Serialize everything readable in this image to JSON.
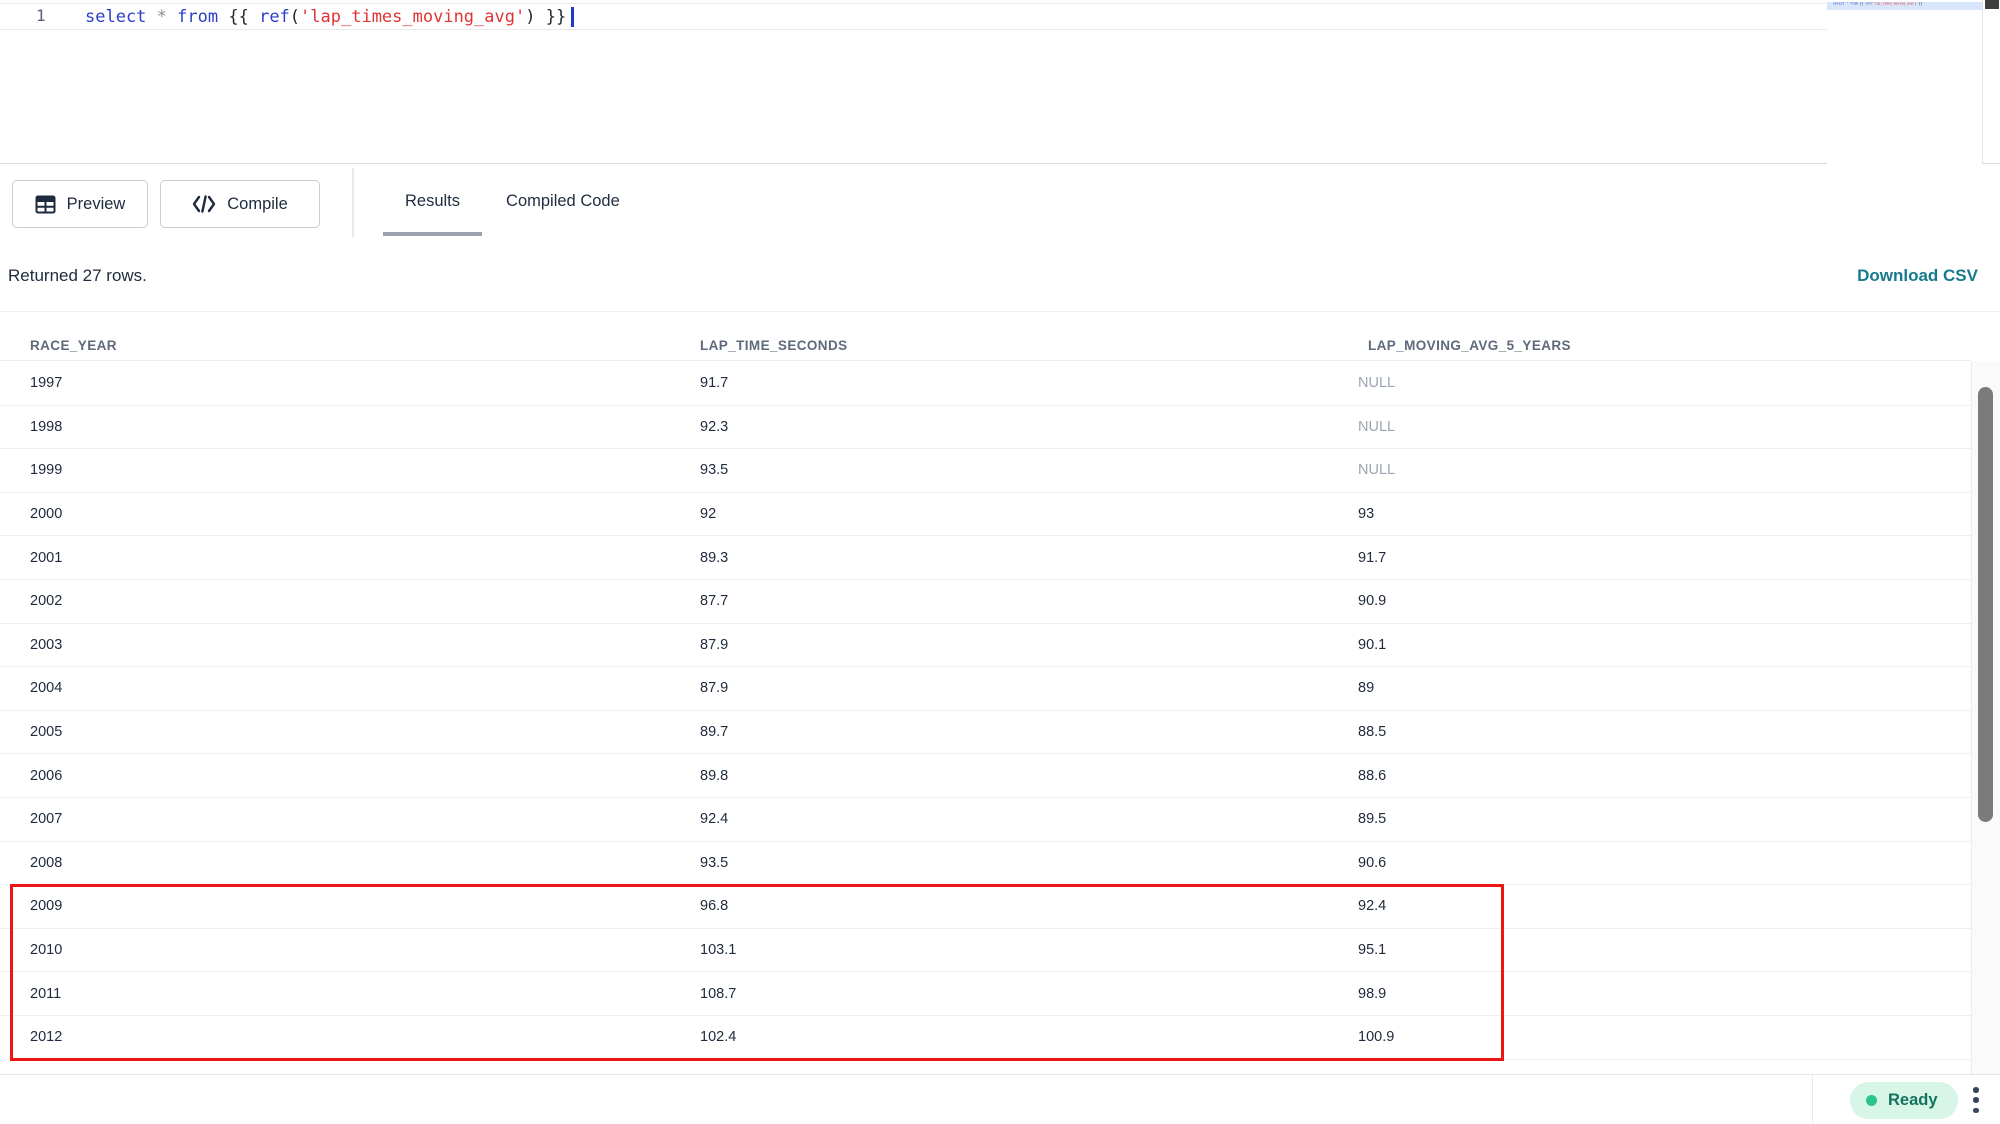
{
  "editor": {
    "line_number": "1",
    "code_text": "select * from {{ ref('lap_times_moving_avg') }}",
    "tokens": [
      {
        "text": "select",
        "type": "keyword"
      },
      {
        "text": " ",
        "type": "plain"
      },
      {
        "text": "*",
        "type": "operator"
      },
      {
        "text": " ",
        "type": "plain"
      },
      {
        "text": "from",
        "type": "keyword"
      },
      {
        "text": " {{ ",
        "type": "plain"
      },
      {
        "text": "ref",
        "type": "keyword"
      },
      {
        "text": "(",
        "type": "plain"
      },
      {
        "text": "'lap_times_moving_avg'",
        "type": "string"
      },
      {
        "text": ")",
        "type": "plain"
      },
      {
        "text": " }}",
        "type": "plain"
      }
    ],
    "token_colors": {
      "keyword": "#2b3ec9",
      "operator": "#8d8d8d",
      "plain": "#24292e",
      "string": "#e03434"
    }
  },
  "toolbar": {
    "preview_label": "Preview",
    "compile_label": "Compile",
    "tabs": [
      {
        "label": "Results",
        "active": true
      },
      {
        "label": "Compiled Code",
        "active": false
      }
    ]
  },
  "results": {
    "summary": "Returned 27 rows.",
    "download_label": "Download CSV",
    "download_link_color": "#177a8d"
  },
  "table": {
    "columns": [
      "RACE_YEAR",
      "LAP_TIME_SECONDS",
      "LAP_MOVING_AVG_5_YEARS"
    ],
    "rows": [
      [
        "1997",
        "91.7",
        "NULL"
      ],
      [
        "1998",
        "92.3",
        "NULL"
      ],
      [
        "1999",
        "93.5",
        "NULL"
      ],
      [
        "2000",
        "92",
        "93"
      ],
      [
        "2001",
        "89.3",
        "91.7"
      ],
      [
        "2002",
        "87.7",
        "90.9"
      ],
      [
        "2003",
        "87.9",
        "90.1"
      ],
      [
        "2004",
        "87.9",
        "89"
      ],
      [
        "2005",
        "89.7",
        "88.5"
      ],
      [
        "2006",
        "89.8",
        "88.6"
      ],
      [
        "2007",
        "92.4",
        "89.5"
      ],
      [
        "2008",
        "93.5",
        "90.6"
      ],
      [
        "2009",
        "96.8",
        "92.4"
      ],
      [
        "2010",
        "103.1",
        "95.1"
      ],
      [
        "2011",
        "108.7",
        "98.9"
      ],
      [
        "2012",
        "102.4",
        "100.9"
      ]
    ],
    "highlight": {
      "rows": [
        "2009",
        "2010",
        "2011",
        "2012"
      ],
      "border_color": "#ee1515"
    }
  },
  "statusbar": {
    "status_label": "Ready",
    "status_dot_color": "#2bc48d",
    "status_text_color": "#12745c",
    "status_bg_color": "#d8f6e7"
  }
}
